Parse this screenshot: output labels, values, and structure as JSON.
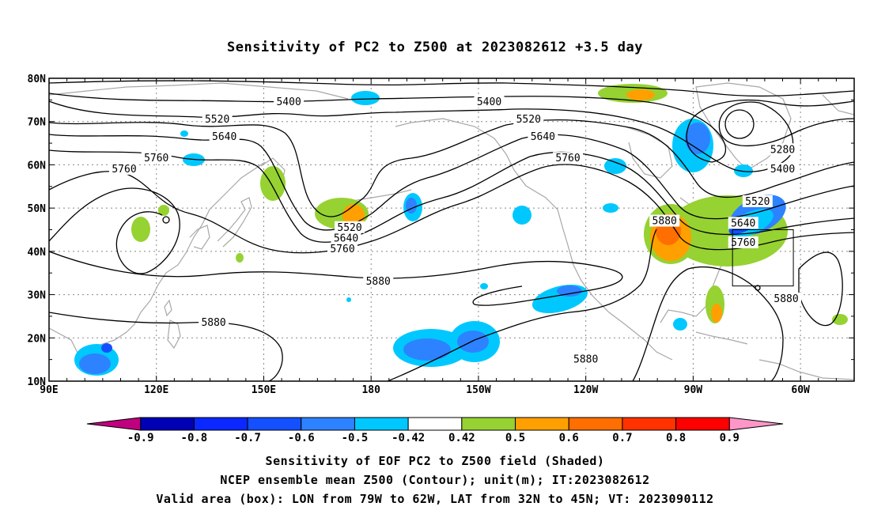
{
  "title": "Sensitivity of PC2 to Z500 at 2023082612 +3.5 day",
  "map": {
    "lon_labels": [
      "90E",
      "120E",
      "150E",
      "180",
      "150W",
      "120W",
      "90W",
      "60W"
    ],
    "lat_labels": [
      "80N",
      "70N",
      "60N",
      "50N",
      "40N",
      "30N",
      "20N",
      "10N"
    ],
    "lon_range": [
      90,
      315
    ],
    "lat_range": [
      10,
      80
    ],
    "gridlines": true,
    "contour_labels": [
      {
        "text": "5400",
        "lon": 157,
        "lat": 74.5
      },
      {
        "text": "5400",
        "lon": 213,
        "lat": 74.5
      },
      {
        "text": "5520",
        "lon": 137,
        "lat": 70.5
      },
      {
        "text": "5520",
        "lon": 224,
        "lat": 70.5
      },
      {
        "text": "5640",
        "lon": 139,
        "lat": 66.5
      },
      {
        "text": "5640",
        "lon": 228,
        "lat": 66.5
      },
      {
        "text": "5760",
        "lon": 120,
        "lat": 61.5
      },
      {
        "text": "5760",
        "lon": 111,
        "lat": 59
      },
      {
        "text": "5760",
        "lon": 235,
        "lat": 61.5
      },
      {
        "text": "5280",
        "lon": 295,
        "lat": 63.5
      },
      {
        "text": "5400",
        "lon": 295,
        "lat": 59
      },
      {
        "text": "5520",
        "lon": 288,
        "lat": 51.5
      },
      {
        "text": "5640",
        "lon": 284,
        "lat": 46.5
      },
      {
        "text": "5760",
        "lon": 284,
        "lat": 42
      },
      {
        "text": "5880",
        "lon": 262,
        "lat": 47
      },
      {
        "text": "5520",
        "lon": 174,
        "lat": 45.5
      },
      {
        "text": "5640",
        "lon": 173,
        "lat": 43
      },
      {
        "text": "5760",
        "lon": 172,
        "lat": 40.5
      },
      {
        "text": "5880",
        "lon": 182,
        "lat": 33
      },
      {
        "text": "5880",
        "lon": 136,
        "lat": 23.5
      },
      {
        "text": "5880",
        "lon": 240,
        "lat": 15
      },
      {
        "text": "5880",
        "lon": 296,
        "lat": 29
      }
    ],
    "valid_box": {
      "lon": [
        281,
        298
      ],
      "lat": [
        32,
        45
      ]
    }
  },
  "colorbar": {
    "labels": [
      "-0.9",
      "-0.8",
      "-0.7",
      "-0.6",
      "-0.5",
      "-0.42",
      "0.42",
      "0.5",
      "0.6",
      "0.7",
      "0.8",
      "0.9"
    ],
    "colors": [
      "#c0007f",
      "#0000b4",
      "#0a28ff",
      "#1450ff",
      "#2d82ff",
      "#00c8ff",
      "#ffffff",
      "#96d232",
      "#ffa000",
      "#ff6e00",
      "#ff3200",
      "#ff0000",
      "#ff96c8"
    ]
  },
  "captions": {
    "line1": "Sensitivity of EOF PC2 to Z500 field (Shaded)",
    "line2": "NCEP ensemble mean Z500 (Contour); unit(m); IT:2023082612",
    "line3": "Valid area (box): LON from 79W to 62W, LAT from 32N to 45N; VT: 2023090112"
  }
}
